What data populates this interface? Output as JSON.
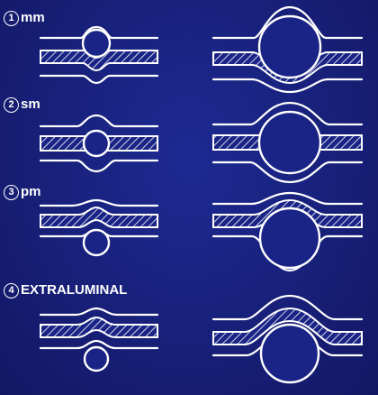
{
  "sections": [
    {
      "number": "1",
      "label": "mm"
    },
    {
      "number": "2",
      "label": "sm"
    },
    {
      "number": "3",
      "label": "pm"
    },
    {
      "number": "4",
      "label": "EXTRALUMINAL"
    }
  ],
  "colors": {
    "background": "#17207a",
    "line": "#ffffff"
  }
}
